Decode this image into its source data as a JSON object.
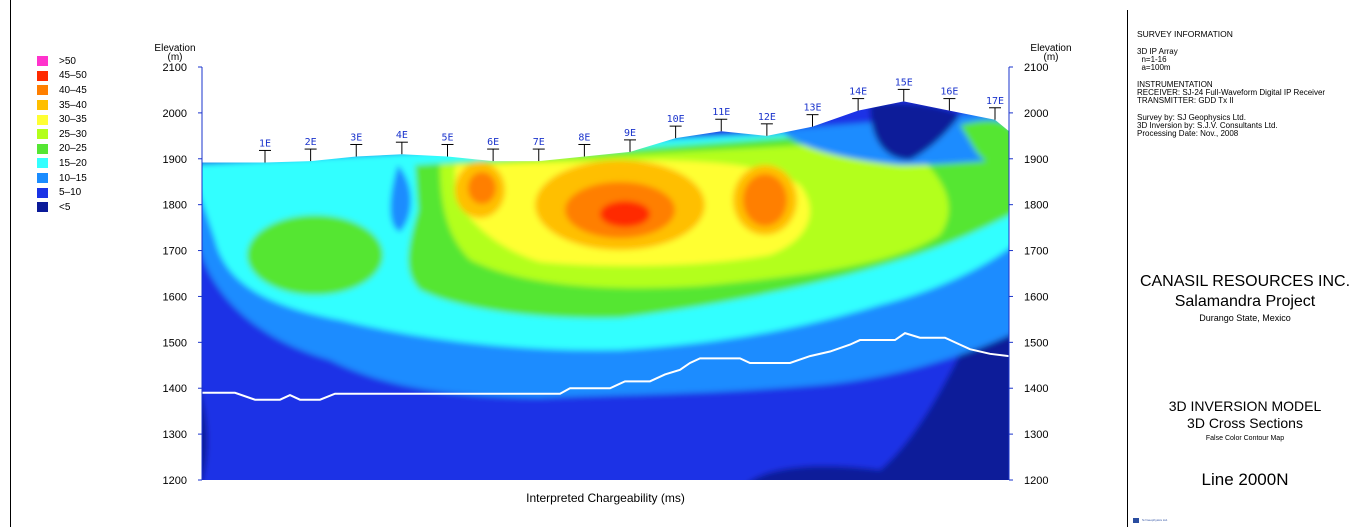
{
  "chart_data": {
    "type": "heatmap",
    "title": "",
    "xlabel": "Interpreted Chargeability (ms)",
    "ylabel": "Elevation (m)",
    "ylim": [
      1200,
      2100
    ],
    "yticks": [
      1200,
      1300,
      1400,
      1500,
      1600,
      1700,
      1800,
      1900,
      2000,
      2100
    ],
    "stations": [
      "1E",
      "2E",
      "3E",
      "4E",
      "5E",
      "6E",
      "7E",
      "8E",
      "9E",
      "10E",
      "11E",
      "12E",
      "13E",
      "14E",
      "15E",
      "16E",
      "17E"
    ],
    "station_topography_m": [
      1892,
      1895,
      1905,
      1910,
      1905,
      1895,
      1895,
      1905,
      1915,
      1945,
      1960,
      1950,
      1970,
      2005,
      2025,
      2005,
      1985
    ],
    "legend": [
      {
        "label": ">50",
        "color": "#ff33cc"
      },
      {
        "label": "45–50",
        "color": "#ff2a00"
      },
      {
        "label": "40–45",
        "color": "#ff7f00"
      },
      {
        "label": "35–40",
        "color": "#ffbf00"
      },
      {
        "label": "30–35",
        "color": "#ffff33"
      },
      {
        "label": "25–30",
        "color": "#b3ff1a"
      },
      {
        "label": "20–25",
        "color": "#55e633"
      },
      {
        "label": "15–20",
        "color": "#33ffff"
      },
      {
        "label": "10–15",
        "color": "#1a8cff"
      },
      {
        "label": "5–10",
        "color": "#1a33e6"
      },
      {
        "label": "<5",
        "color": "#0a1a99"
      }
    ]
  },
  "axis": {
    "left_label": "Elevation\n(m)",
    "right_label": "Elevation\n(m)"
  },
  "side_panel": {
    "survey_heading": "SURVEY INFORMATION",
    "survey_lines": [
      "3D IP Array",
      "  n=1-16",
      "  a=100m"
    ],
    "instrument_lines": [
      "INSTRUMENTATION",
      "RECEIVER: SJ-24 Full-Waveform Digital IP Receiver",
      "TRANSMITTER: GDD Tx II"
    ],
    "credit_lines": [
      "Survey by: SJ Geophysics Ltd.",
      "3D Inversion by: S.J.V. Consultants Ltd.",
      "Processing Date: Nov., 2008"
    ],
    "company": "CANASIL RESOURCES INC.",
    "project": "Salamandra Project",
    "location": "Durango State, Mexico",
    "model_title": "3D INVERSION MODEL",
    "model_sub": "3D Cross Sections",
    "model_note": "False Color Contour Map",
    "line_name": "Line 2000N",
    "footer": "SJ Geophysics Ltd."
  }
}
